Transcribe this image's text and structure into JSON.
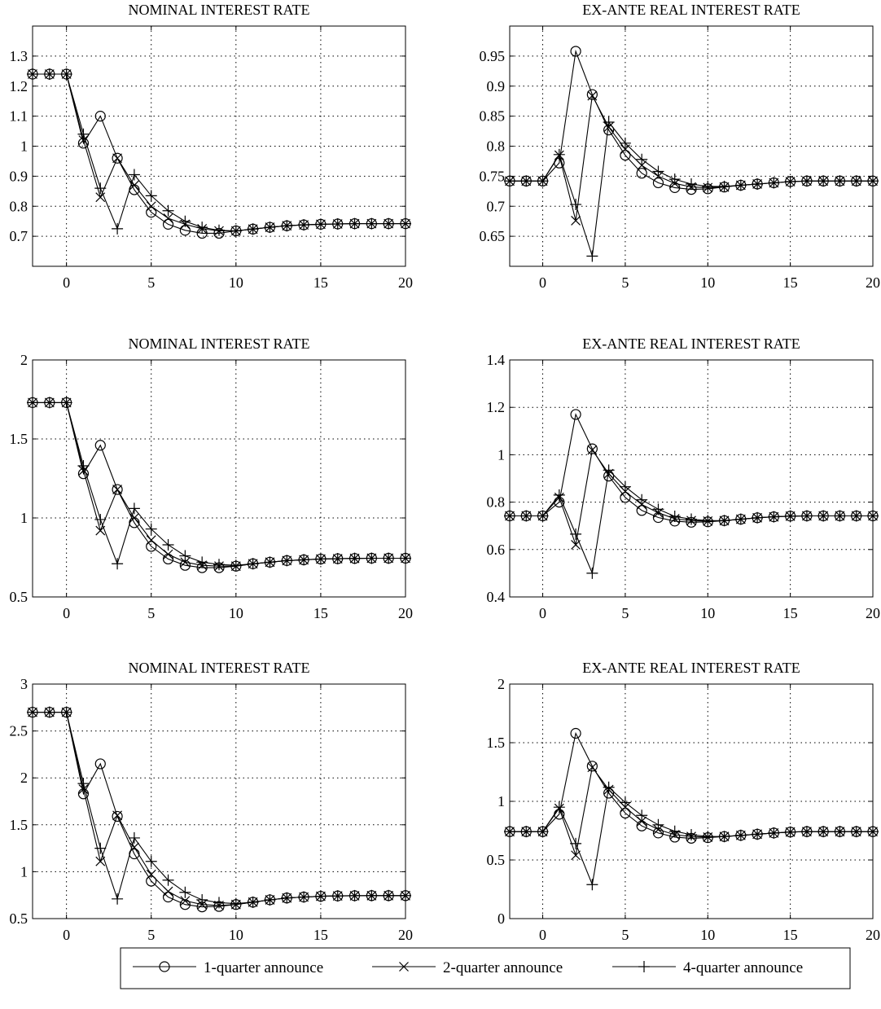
{
  "colors": {
    "line": "#000000",
    "grid": "#000000",
    "background": "#ffffff"
  },
  "legend": {
    "placement": "bottom",
    "entries": [
      {
        "label": "1-quarter announce",
        "marker": "circle"
      },
      {
        "label": "2-quarter announce",
        "marker": "x"
      },
      {
        "label": "4-quarter announce",
        "marker": "plus"
      }
    ]
  },
  "chart_data": [
    {
      "type": "line",
      "title": "NOMINAL INTEREST RATE",
      "xlim": [
        -2,
        20
      ],
      "ylim": [
        0.6,
        1.4
      ],
      "xticks": [
        0,
        5,
        10,
        15,
        20
      ],
      "xtick_labels": [
        "0",
        "5",
        "10",
        "15",
        "20"
      ],
      "yticks": [
        0.7,
        0.8,
        0.9,
        1.0,
        1.1,
        1.2,
        1.3
      ],
      "ytick_labels": [
        "0.7",
        "0.8",
        "0.9",
        "1",
        "1.1",
        "1.2",
        "1.3"
      ],
      "grid": true,
      "x": [
        -2,
        -1,
        0,
        1,
        2,
        3,
        4,
        5,
        6,
        7,
        8,
        9,
        10,
        11,
        12,
        13,
        14,
        15,
        16,
        17,
        18,
        19,
        20
      ],
      "series": [
        {
          "name": "1-quarter announce",
          "marker": "circle",
          "values": [
            1.24,
            1.24,
            1.24,
            1.01,
            1.1,
            0.96,
            0.855,
            0.78,
            0.74,
            0.72,
            0.71,
            0.71,
            0.718,
            0.724,
            0.73,
            0.735,
            0.738,
            0.74,
            0.741,
            0.742,
            0.742,
            0.742,
            0.742
          ]
        },
        {
          "name": "2-quarter announce",
          "marker": "x",
          "values": [
            1.24,
            1.24,
            1.24,
            1.02,
            0.83,
            0.96,
            0.87,
            0.8,
            0.76,
            0.74,
            0.725,
            0.718,
            0.718,
            0.724,
            0.73,
            0.735,
            0.738,
            0.74,
            0.741,
            0.742,
            0.742,
            0.742,
            0.742
          ]
        },
        {
          "name": "4-quarter announce",
          "marker": "plus",
          "values": [
            1.24,
            1.24,
            1.24,
            1.04,
            0.86,
            0.725,
            0.905,
            0.835,
            0.785,
            0.75,
            0.73,
            0.72,
            0.718,
            0.724,
            0.73,
            0.735,
            0.738,
            0.74,
            0.741,
            0.742,
            0.742,
            0.742,
            0.742
          ]
        }
      ]
    },
    {
      "type": "line",
      "title": "EX-ANTE REAL INTEREST RATE",
      "xlim": [
        -2,
        20
      ],
      "ylim": [
        0.6,
        1.0
      ],
      "xticks": [
        0,
        5,
        10,
        15,
        20
      ],
      "xtick_labels": [
        "0",
        "5",
        "10",
        "15",
        "20"
      ],
      "yticks": [
        0.65,
        0.7,
        0.75,
        0.8,
        0.85,
        0.9,
        0.95
      ],
      "ytick_labels": [
        "0.65",
        "0.7",
        "0.75",
        "0.8",
        "0.85",
        "0.9",
        "0.95"
      ],
      "grid": true,
      "x": [
        -2,
        -1,
        0,
        1,
        2,
        3,
        4,
        5,
        6,
        7,
        8,
        9,
        10,
        11,
        12,
        13,
        14,
        15,
        16,
        17,
        18,
        19,
        20
      ],
      "series": [
        {
          "name": "1-quarter announce",
          "marker": "circle",
          "values": [
            0.742,
            0.742,
            0.742,
            0.772,
            0.958,
            0.886,
            0.827,
            0.785,
            0.755,
            0.739,
            0.731,
            0.728,
            0.729,
            0.732,
            0.735,
            0.737,
            0.739,
            0.741,
            0.742,
            0.742,
            0.742,
            0.742,
            0.742
          ]
        },
        {
          "name": "2-quarter announce",
          "marker": "x",
          "values": [
            0.742,
            0.742,
            0.742,
            0.785,
            0.676,
            0.884,
            0.832,
            0.795,
            0.768,
            0.75,
            0.738,
            0.732,
            0.731,
            0.732,
            0.735,
            0.737,
            0.739,
            0.741,
            0.742,
            0.742,
            0.742,
            0.742,
            0.742
          ]
        },
        {
          "name": "4-quarter announce",
          "marker": "plus",
          "values": [
            0.742,
            0.742,
            0.742,
            0.786,
            0.703,
            0.617,
            0.84,
            0.805,
            0.778,
            0.758,
            0.745,
            0.737,
            0.733,
            0.733,
            0.735,
            0.737,
            0.739,
            0.741,
            0.742,
            0.742,
            0.742,
            0.742,
            0.742
          ]
        }
      ]
    },
    {
      "type": "line",
      "title": "NOMINAL INTEREST RATE",
      "xlim": [
        -2,
        20
      ],
      "ylim": [
        0.5,
        2.0
      ],
      "xticks": [
        0,
        5,
        10,
        15,
        20
      ],
      "xtick_labels": [
        "0",
        "5",
        "10",
        "15",
        "20"
      ],
      "yticks": [
        0.5,
        1.0,
        1.5,
        2.0
      ],
      "ytick_labels": [
        "0.5",
        "1",
        "1.5",
        "2"
      ],
      "grid": true,
      "x": [
        -2,
        -1,
        0,
        1,
        2,
        3,
        4,
        5,
        6,
        7,
        8,
        9,
        10,
        11,
        12,
        13,
        14,
        15,
        16,
        17,
        18,
        19,
        20
      ],
      "series": [
        {
          "name": "1-quarter announce",
          "marker": "circle",
          "values": [
            1.73,
            1.73,
            1.73,
            1.28,
            1.46,
            1.18,
            0.97,
            0.82,
            0.74,
            0.7,
            0.685,
            0.685,
            0.695,
            0.71,
            0.72,
            0.73,
            0.735,
            0.74,
            0.742,
            0.744,
            0.745,
            0.745,
            0.745
          ]
        },
        {
          "name": "2-quarter announce",
          "marker": "x",
          "values": [
            1.73,
            1.73,
            1.73,
            1.3,
            0.92,
            1.18,
            1.0,
            0.86,
            0.77,
            0.72,
            0.7,
            0.695,
            0.695,
            0.71,
            0.72,
            0.73,
            0.735,
            0.74,
            0.742,
            0.744,
            0.745,
            0.745,
            0.745
          ]
        },
        {
          "name": "4-quarter announce",
          "marker": "plus",
          "values": [
            1.73,
            1.73,
            1.73,
            1.33,
            0.99,
            0.71,
            1.06,
            0.93,
            0.83,
            0.76,
            0.72,
            0.705,
            0.7,
            0.71,
            0.72,
            0.73,
            0.735,
            0.74,
            0.742,
            0.744,
            0.745,
            0.745,
            0.745
          ]
        }
      ]
    },
    {
      "type": "line",
      "title": "EX-ANTE REAL INTEREST RATE",
      "xlim": [
        -2,
        20
      ],
      "ylim": [
        0.4,
        1.4
      ],
      "xticks": [
        0,
        5,
        10,
        15,
        20
      ],
      "xtick_labels": [
        "0",
        "5",
        "10",
        "15",
        "20"
      ],
      "yticks": [
        0.4,
        0.6,
        0.8,
        1.0,
        1.2,
        1.4
      ],
      "ytick_labels": [
        "0.4",
        "0.6",
        "0.8",
        "1",
        "1.2",
        "1.4"
      ],
      "grid": true,
      "x": [
        -2,
        -1,
        0,
        1,
        2,
        3,
        4,
        5,
        6,
        7,
        8,
        9,
        10,
        11,
        12,
        13,
        14,
        15,
        16,
        17,
        18,
        19,
        20
      ],
      "series": [
        {
          "name": "1-quarter announce",
          "marker": "circle",
          "values": [
            0.742,
            0.742,
            0.742,
            0.8,
            1.17,
            1.025,
            0.91,
            0.82,
            0.765,
            0.735,
            0.72,
            0.715,
            0.717,
            0.722,
            0.728,
            0.734,
            0.738,
            0.741,
            0.742,
            0.742,
            0.742,
            0.742,
            0.742
          ]
        },
        {
          "name": "2-quarter announce",
          "marker": "x",
          "values": [
            0.742,
            0.742,
            0.742,
            0.82,
            0.62,
            1.02,
            0.92,
            0.845,
            0.79,
            0.755,
            0.73,
            0.722,
            0.72,
            0.722,
            0.728,
            0.734,
            0.738,
            0.741,
            0.742,
            0.742,
            0.742,
            0.742,
            0.742
          ]
        },
        {
          "name": "4-quarter announce",
          "marker": "plus",
          "values": [
            0.742,
            0.742,
            0.742,
            0.83,
            0.665,
            0.5,
            0.935,
            0.865,
            0.81,
            0.77,
            0.74,
            0.728,
            0.722,
            0.722,
            0.728,
            0.734,
            0.738,
            0.741,
            0.742,
            0.742,
            0.742,
            0.742,
            0.742
          ]
        }
      ]
    },
    {
      "type": "line",
      "title": "NOMINAL INTEREST RATE",
      "xlim": [
        -2,
        20
      ],
      "ylim": [
        0.5,
        3.0
      ],
      "xticks": [
        0,
        5,
        10,
        15,
        20
      ],
      "xtick_labels": [
        "0",
        "5",
        "10",
        "15",
        "20"
      ],
      "yticks": [
        0.5,
        1.0,
        1.5,
        2.0,
        2.5,
        3.0
      ],
      "ytick_labels": [
        "0.5",
        "1",
        "1.5",
        "2",
        "2.5",
        "3"
      ],
      "grid": true,
      "x": [
        -2,
        -1,
        0,
        1,
        2,
        3,
        4,
        5,
        6,
        7,
        8,
        9,
        10,
        11,
        12,
        13,
        14,
        15,
        16,
        17,
        18,
        19,
        20
      ],
      "series": [
        {
          "name": "1-quarter announce",
          "marker": "circle",
          "values": [
            2.7,
            2.7,
            2.7,
            1.83,
            2.15,
            1.59,
            1.19,
            0.9,
            0.73,
            0.65,
            0.625,
            0.63,
            0.65,
            0.675,
            0.7,
            0.72,
            0.73,
            0.738,
            0.742,
            0.744,
            0.745,
            0.745,
            0.745
          ]
        },
        {
          "name": "2-quarter announce",
          "marker": "x",
          "values": [
            2.7,
            2.7,
            2.7,
            1.88,
            1.11,
            1.6,
            1.26,
            0.97,
            0.79,
            0.69,
            0.65,
            0.64,
            0.65,
            0.675,
            0.7,
            0.72,
            0.73,
            0.738,
            0.742,
            0.744,
            0.745,
            0.745,
            0.745
          ]
        },
        {
          "name": "4-quarter announce",
          "marker": "plus",
          "values": [
            2.7,
            2.7,
            2.7,
            1.94,
            1.25,
            0.71,
            1.36,
            1.11,
            0.91,
            0.78,
            0.7,
            0.67,
            0.66,
            0.675,
            0.7,
            0.72,
            0.73,
            0.738,
            0.742,
            0.744,
            0.745,
            0.745,
            0.745
          ]
        }
      ]
    },
    {
      "type": "line",
      "title": "EX-ANTE REAL INTEREST RATE",
      "xlim": [
        -2,
        20
      ],
      "ylim": [
        0.0,
        2.0
      ],
      "xticks": [
        0,
        5,
        10,
        15,
        20
      ],
      "xtick_labels": [
        "0",
        "5",
        "10",
        "15",
        "20"
      ],
      "yticks": [
        0.0,
        0.5,
        1.0,
        1.5,
        2.0
      ],
      "ytick_labels": [
        "0",
        "0.5",
        "1",
        "1.5",
        "2"
      ],
      "grid": true,
      "x": [
        -2,
        -1,
        0,
        1,
        2,
        3,
        4,
        5,
        6,
        7,
        8,
        9,
        10,
        11,
        12,
        13,
        14,
        15,
        16,
        17,
        18,
        19,
        20
      ],
      "series": [
        {
          "name": "1-quarter announce",
          "marker": "circle",
          "values": [
            0.742,
            0.742,
            0.742,
            0.89,
            1.58,
            1.3,
            1.07,
            0.9,
            0.79,
            0.73,
            0.695,
            0.685,
            0.69,
            0.7,
            0.71,
            0.72,
            0.73,
            0.738,
            0.742,
            0.742,
            0.742,
            0.742,
            0.742
          ]
        },
        {
          "name": "2-quarter announce",
          "marker": "x",
          "values": [
            0.742,
            0.742,
            0.742,
            0.94,
            0.54,
            1.29,
            1.1,
            0.95,
            0.83,
            0.76,
            0.715,
            0.7,
            0.695,
            0.7,
            0.71,
            0.72,
            0.73,
            0.738,
            0.742,
            0.742,
            0.742,
            0.742,
            0.742
          ]
        },
        {
          "name": "4-quarter announce",
          "marker": "plus",
          "values": [
            0.742,
            0.742,
            0.742,
            0.95,
            0.64,
            0.29,
            1.12,
            0.99,
            0.88,
            0.8,
            0.745,
            0.715,
            0.7,
            0.7,
            0.71,
            0.72,
            0.73,
            0.738,
            0.742,
            0.742,
            0.742,
            0.742,
            0.742
          ]
        }
      ]
    }
  ]
}
